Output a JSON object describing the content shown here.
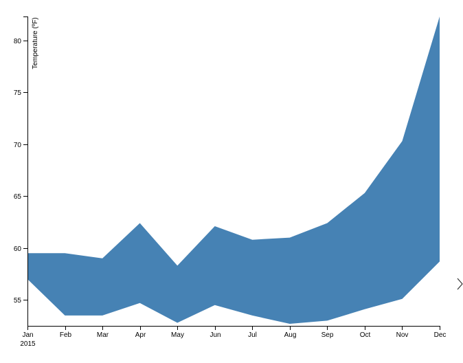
{
  "chart_data": {
    "type": "area",
    "ylabel": "Temperature (ºF)",
    "xlabel": "",
    "x_tick_labels": [
      "Jan",
      "Feb",
      "Mar",
      "Apr",
      "May",
      "Jun",
      "Jul",
      "Aug",
      "Sep",
      "Oct",
      "Nov",
      "Dec"
    ],
    "x_year_label": "2015",
    "y_ticks": [
      55,
      60,
      65,
      70,
      75,
      80
    ],
    "ylim": [
      52.5,
      82.3
    ],
    "fill_color": "#4682b4",
    "series": [
      {
        "values_low": [
          57.0,
          53.5,
          53.5,
          54.7,
          52.8,
          54.5,
          53.5,
          52.7,
          53.0,
          54.1,
          55.1,
          58.7
        ],
        "values_high": [
          59.5,
          59.5,
          59.0,
          62.4,
          58.3,
          62.1,
          60.8,
          61.0,
          62.4,
          65.3,
          70.3,
          82.3
        ]
      }
    ],
    "grid": false,
    "legend": "none"
  }
}
